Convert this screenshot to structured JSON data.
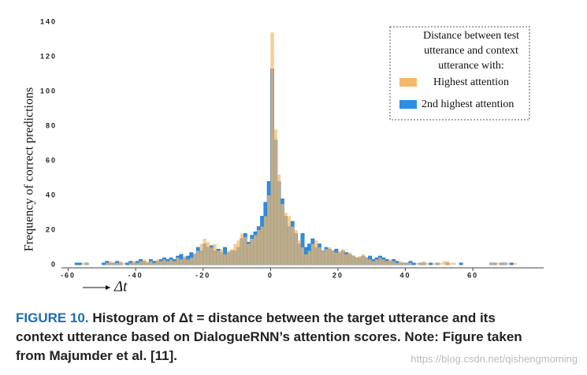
{
  "chart_data": {
    "type": "histogram",
    "ylabel": "Frequency of correct predictions",
    "xlabel": "Δt",
    "legend_title": [
      "Distance between test",
      "utterance and context",
      "utterance with:"
    ],
    "legend": "upper right",
    "xlim": [
      -62,
      81
    ],
    "ylim": [
      0,
      140
    ],
    "xticks": [
      -60,
      -40,
      -20,
      0,
      20,
      40,
      60
    ],
    "yticks": [
      0,
      20,
      40,
      60,
      80,
      100,
      120,
      140
    ],
    "grid": false,
    "bins": [
      -60,
      -59,
      -58,
      -57,
      -56,
      -55,
      -54,
      -53,
      -52,
      -51,
      -50,
      -49,
      -48,
      -47,
      -46,
      -45,
      -44,
      -43,
      -42,
      -41,
      -40,
      -39,
      -38,
      -37,
      -36,
      -35,
      -34,
      -33,
      -32,
      -31,
      -30,
      -29,
      -28,
      -27,
      -26,
      -25,
      -24,
      -23,
      -22,
      -21,
      -20,
      -19,
      -18,
      -17,
      -16,
      -15,
      -14,
      -13,
      -12,
      -11,
      -10,
      -9,
      -8,
      -7,
      -6,
      -5,
      -4,
      -3,
      -2,
      -1,
      0,
      1,
      2,
      3,
      4,
      5,
      6,
      7,
      8,
      9,
      10,
      11,
      12,
      13,
      14,
      15,
      16,
      17,
      18,
      19,
      20,
      21,
      22,
      23,
      24,
      25,
      26,
      27,
      28,
      29,
      30,
      31,
      32,
      33,
      34,
      35,
      36,
      37,
      38,
      39,
      40,
      41,
      42,
      43,
      44,
      45,
      46,
      47,
      48,
      49,
      50,
      51,
      52,
      53,
      54,
      55,
      56,
      57,
      58,
      59,
      60,
      61,
      62,
      63,
      64,
      65,
      66,
      67,
      68,
      69,
      70,
      71,
      72,
      73,
      74,
      75
    ],
    "series": [
      {
        "name": "2nd highest attention",
        "color": "#2b8fe6",
        "values": [
          0,
          0,
          1,
          1,
          0,
          1,
          0,
          0,
          0,
          0,
          1,
          2,
          1,
          1,
          2,
          1,
          0,
          1,
          2,
          1,
          2,
          3,
          2,
          1,
          3,
          2,
          2,
          3,
          4,
          3,
          4,
          3,
          5,
          6,
          4,
          5,
          7,
          6,
          10,
          8,
          12,
          10,
          11,
          8,
          9,
          7,
          10,
          7,
          8,
          8,
          10,
          15,
          18,
          13,
          17,
          19,
          22,
          28,
          36,
          48,
          113,
          72,
          48,
          38,
          28,
          22,
          25,
          18,
          12,
          18,
          10,
          12,
          15,
          10,
          12,
          8,
          10,
          9,
          8,
          9,
          7,
          8,
          7,
          6,
          5,
          4,
          4,
          5,
          4,
          5,
          3,
          4,
          5,
          4,
          3,
          2,
          3,
          2,
          1,
          1,
          1,
          2,
          1,
          0,
          1,
          1,
          0,
          1,
          0,
          1,
          0,
          0,
          1,
          0,
          0,
          0,
          1,
          0,
          0,
          0,
          0,
          0,
          0,
          0,
          0,
          1,
          1,
          0,
          1,
          1,
          0,
          1,
          0,
          0,
          0
        ]
      },
      {
        "name": "Highest attention",
        "color": "#f5b86a",
        "values": [
          0,
          0,
          0,
          0,
          1,
          1,
          0,
          0,
          0,
          0,
          0,
          1,
          2,
          1,
          1,
          2,
          1,
          0,
          1,
          2,
          1,
          2,
          3,
          2,
          2,
          1,
          3,
          2,
          3,
          2,
          3,
          2,
          4,
          3,
          5,
          3,
          4,
          6,
          8,
          12,
          15,
          13,
          10,
          12,
          8,
          9,
          6,
          8,
          9,
          12,
          14,
          18,
          16,
          12,
          15,
          17,
          20,
          22,
          28,
          40,
          134,
          78,
          52,
          35,
          30,
          28,
          22,
          20,
          14,
          10,
          6,
          8,
          12,
          14,
          10,
          8,
          9,
          10,
          8,
          7,
          8,
          9,
          6,
          7,
          5,
          4,
          5,
          6,
          4,
          3,
          2,
          3,
          4,
          3,
          2,
          3,
          2,
          1,
          2,
          1,
          1,
          1,
          0,
          1,
          1,
          2,
          1,
          0,
          1,
          1,
          1,
          2,
          2,
          1,
          1,
          0,
          0,
          0,
          0,
          0,
          0,
          0,
          0,
          0,
          0,
          1,
          1,
          1,
          1,
          1,
          1,
          0,
          1,
          0,
          0
        ]
      }
    ]
  },
  "caption_label": "FIGURE 10.",
  "caption": "Histogram of Δt = distance between the target utterance and its context utterance based on DialogueRNN’s attention scores. Note: Figure taken from Majumder et al. [11].",
  "watermark": "https://blog.csdn.net/qishengmoming"
}
